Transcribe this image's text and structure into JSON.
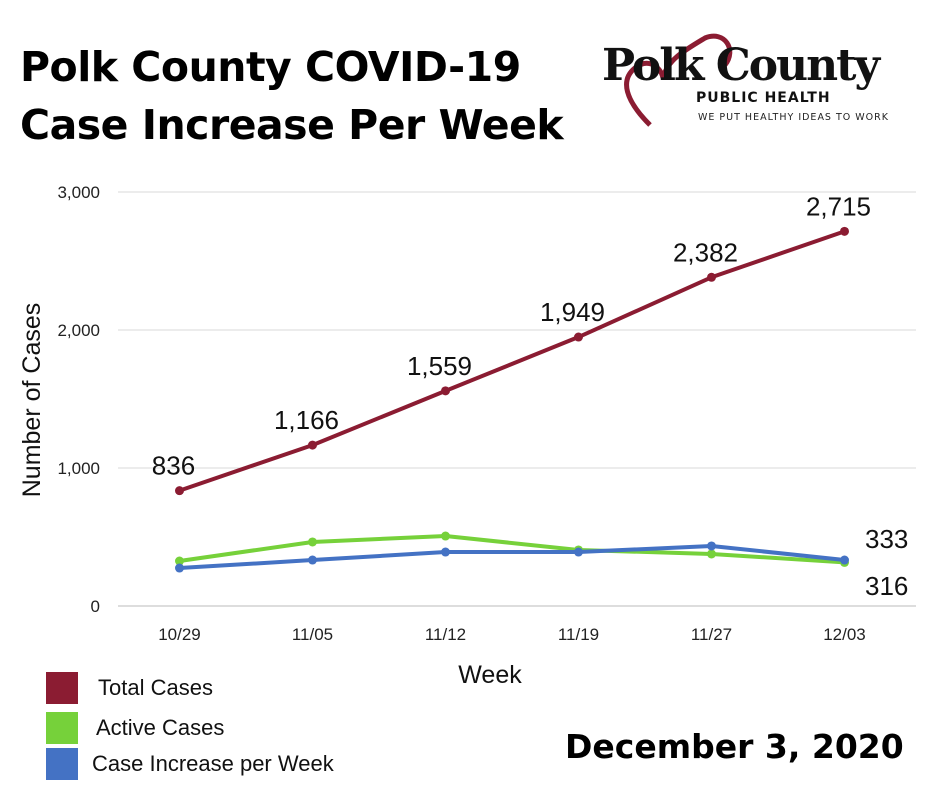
{
  "chart_data": {
    "type": "line",
    "title": "Polk County COVID-19 Case Increase Per Week",
    "xlabel": "Week",
    "ylabel": "Number of Cases",
    "categories": [
      "10/29",
      "11/05",
      "11/12",
      "11/19",
      "11/27",
      "12/03"
    ],
    "ylim": [
      0,
      3000
    ],
    "yticks": [
      "0",
      "1,000",
      "2,000",
      "3,000"
    ],
    "grid": true,
    "legend_position": "bottom-left",
    "series": [
      {
        "name": "Total Cases",
        "color": "#8b1c32",
        "values": [
          836,
          1166,
          1559,
          1949,
          2382,
          2715
        ],
        "labels": [
          "836",
          "1,166",
          "1,559",
          "1,949",
          "2,382",
          "2,715"
        ]
      },
      {
        "name": "Active Cases",
        "color": "#76d13a",
        "values": [
          326,
          464,
          507,
          406,
          377,
          316
        ],
        "labels": [
          "",
          "",
          "",
          "",
          "",
          "316"
        ]
      },
      {
        "name": "Case Increase per Week",
        "color": "#4472c4",
        "values": [
          275,
          333,
          391,
          391,
          435,
          333
        ],
        "labels": [
          "",
          "",
          "",
          "",
          "",
          "333"
        ]
      }
    ]
  },
  "title_line1": "Polk County COVID-19",
  "title_line2": "Case Increase Per Week",
  "logo": {
    "main": "Polk County",
    "sub": "PUBLIC HEALTH",
    "tagline": "WE PUT HEALTHY IDEAS TO WORK",
    "color": "#8b1c32"
  },
  "date": "December 3, 2020"
}
